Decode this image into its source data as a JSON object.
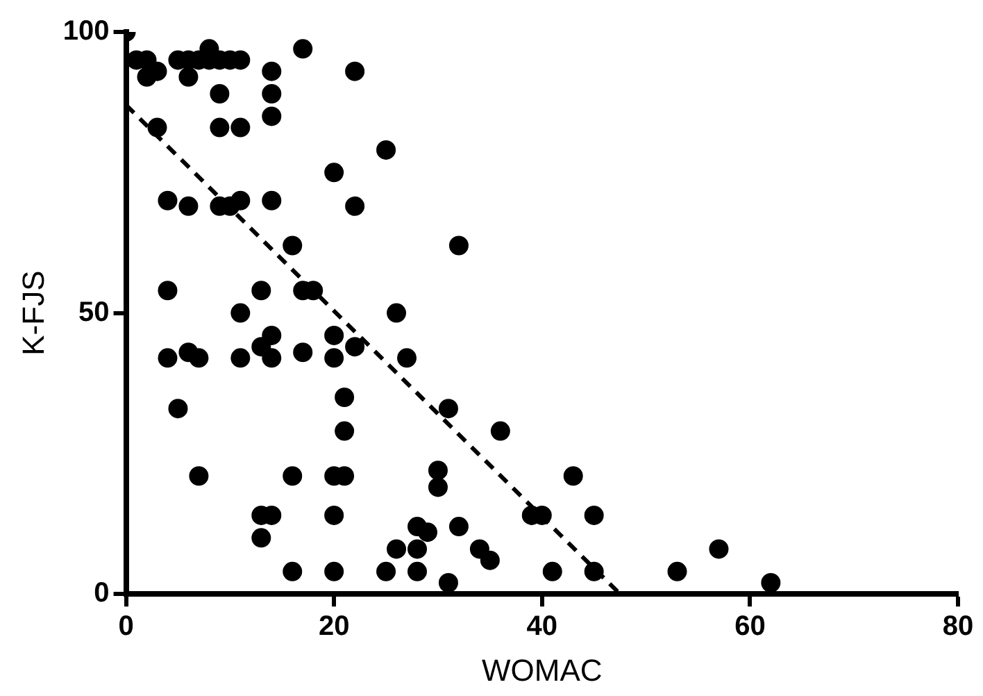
{
  "chart_data": {
    "type": "scatter",
    "xlabel": "WOMAC",
    "ylabel": "K-FJS",
    "xlim": [
      0,
      80
    ],
    "xticks": [
      0,
      20,
      40,
      60,
      80
    ],
    "ylim": [
      0,
      100
    ],
    "yticks": [
      0,
      50,
      100
    ],
    "grid": false,
    "legend": false,
    "marker": "circle",
    "series": [
      {
        "type": "scatter",
        "color": "#000000",
        "x": [
          0,
          1,
          2,
          2,
          3,
          3,
          4,
          4,
          4,
          5,
          5,
          6,
          6,
          6,
          6,
          7,
          7,
          7,
          8,
          8,
          9,
          9,
          9,
          9,
          10,
          10,
          11,
          11,
          11,
          11,
          11,
          13,
          13,
          13,
          13,
          14,
          14,
          14,
          14,
          14,
          14,
          14,
          16,
          16,
          16,
          17,
          17,
          17,
          18,
          20,
          20,
          20,
          20,
          20,
          20,
          21,
          21,
          21,
          22,
          22,
          22,
          25,
          25,
          26,
          26,
          27,
          28,
          28,
          28,
          29,
          30,
          30,
          31,
          31,
          32,
          32,
          34,
          35,
          36,
          39,
          40,
          41,
          43,
          45,
          45,
          53,
          57,
          62
        ],
        "values": [
          100,
          95,
          95,
          92,
          93,
          83,
          70,
          54,
          42,
          33,
          95,
          95,
          92,
          69,
          43,
          42,
          21,
          95,
          97,
          95,
          95,
          89,
          83,
          69,
          95,
          69,
          95,
          83,
          70,
          50,
          42,
          54,
          44,
          14,
          10,
          93,
          89,
          85,
          70,
          46,
          42,
          14,
          62,
          21,
          4,
          97,
          54,
          43,
          54,
          75,
          46,
          42,
          21,
          14,
          4,
          35,
          29,
          21,
          93,
          69,
          44,
          79,
          4,
          50,
          8,
          42,
          12,
          8,
          4,
          11,
          22,
          19,
          2,
          33,
          62,
          12,
          8,
          6,
          29,
          14,
          14,
          4,
          21,
          14,
          4,
          4,
          8,
          2
        ]
      },
      {
        "type": "line",
        "color": "#000000",
        "line_style": "dashed",
        "marker": "none",
        "x": [
          0,
          47.5
        ],
        "values": [
          87,
          0
        ]
      }
    ]
  }
}
